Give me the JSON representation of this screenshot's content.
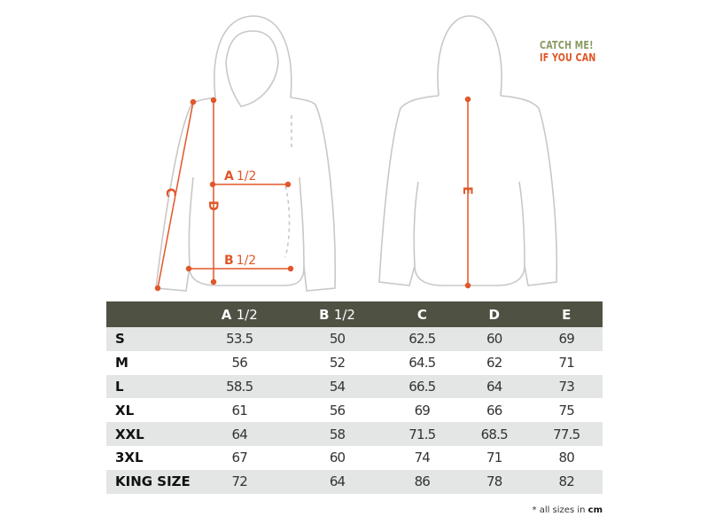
{
  "logo": {
    "line1": "CATCH ME!",
    "line2": "IF YOU CAN"
  },
  "colors": {
    "accent": "#e0572a",
    "header_bg": "#4f5143",
    "row_alt": "#e4e5e5",
    "logo_green": "#8a9a62"
  },
  "diagram": {
    "front_labels": {
      "a_letter": "A",
      "a_half": "1/2",
      "b_letter": "B",
      "b_half": "1/2",
      "c": "C",
      "d": "D"
    },
    "back_labels": {
      "e": "E"
    }
  },
  "table": {
    "headers": [
      {
        "letter": "",
        "half": ""
      },
      {
        "letter": "A",
        "half": "1/2"
      },
      {
        "letter": "B",
        "half": "1/2"
      },
      {
        "letter": "C",
        "half": ""
      },
      {
        "letter": "D",
        "half": ""
      },
      {
        "letter": "E",
        "half": ""
      }
    ],
    "rows": [
      [
        "S",
        "53.5",
        "50",
        "62.5",
        "60",
        "69"
      ],
      [
        "M",
        "56",
        "52",
        "64.5",
        "62",
        "71"
      ],
      [
        "L",
        "58.5",
        "54",
        "66.5",
        "64",
        "73"
      ],
      [
        "XL",
        "61",
        "56",
        "69",
        "66",
        "75"
      ],
      [
        "XXL",
        "64",
        "58",
        "71.5",
        "68.5",
        "77.5"
      ],
      [
        "3XL",
        "67",
        "60",
        "74",
        "71",
        "80"
      ],
      [
        "KING SIZE",
        "72",
        "64",
        "86",
        "78",
        "82"
      ]
    ]
  },
  "note": {
    "prefix": "* all sizes in",
    "unit": "cm"
  }
}
